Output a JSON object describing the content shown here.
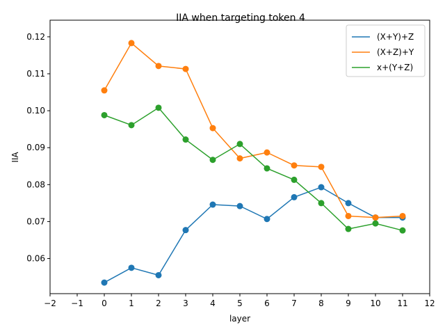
{
  "chart_data": {
    "type": "line",
    "title": "IIA when targeting token 4",
    "xlabel": "layer",
    "ylabel": "IIA",
    "xlim": [
      -2,
      12
    ],
    "ylim": [
      0.0505,
      0.1245
    ],
    "xticks": [
      -2,
      -1,
      0,
      1,
      2,
      3,
      4,
      5,
      6,
      7,
      8,
      9,
      10,
      11,
      12
    ],
    "xtick_labels": [
      "−2",
      "−1",
      "0",
      "1",
      "2",
      "3",
      "4",
      "5",
      "6",
      "7",
      "8",
      "9",
      "10",
      "11",
      "12"
    ],
    "yticks": [
      0.06,
      0.07,
      0.08,
      0.09,
      0.1,
      0.11,
      0.12
    ],
    "ytick_labels": [
      "0.06",
      "0.07",
      "0.08",
      "0.09",
      "0.10",
      "0.11",
      "0.12"
    ],
    "grid": false,
    "legend_position": "top-right",
    "x": [
      0,
      1,
      2,
      3,
      4,
      5,
      6,
      7,
      8,
      9,
      10,
      11
    ],
    "series": [
      {
        "name": "(X+Y)+Z",
        "color": "#1f77b4",
        "values": [
          0.0535,
          0.0575,
          0.0555,
          0.0677,
          0.0746,
          0.0742,
          0.0707,
          0.0766,
          0.0793,
          0.075,
          0.0711,
          0.0711
        ]
      },
      {
        "name": "(X+Z)+Y",
        "color": "#ff7f0e",
        "values": [
          0.1055,
          0.1183,
          0.1121,
          0.1113,
          0.0953,
          0.0871,
          0.0887,
          0.0852,
          0.0848,
          0.0715,
          0.0711,
          0.0715
        ]
      },
      {
        "name": "x+(Y+Z)",
        "color": "#2ca02c",
        "values": [
          0.0988,
          0.0961,
          0.1008,
          0.0922,
          0.0867,
          0.091,
          0.0844,
          0.0813,
          0.075,
          0.068,
          0.0695,
          0.0676
        ]
      }
    ]
  }
}
